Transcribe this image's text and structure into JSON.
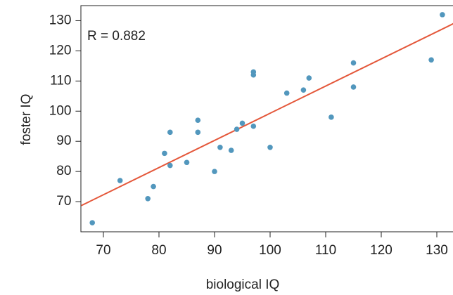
{
  "chart_data": {
    "type": "scatter",
    "x_label": "biological IQ",
    "y_label": "foster IQ",
    "annotation": "R =  0.882",
    "x": [
      82,
      90,
      91,
      115,
      115,
      129,
      131,
      78,
      79,
      82,
      97,
      100,
      107,
      68,
      73,
      81,
      85,
      87,
      87,
      93,
      94,
      95,
      97,
      97,
      103,
      106,
      111
    ],
    "y": [
      82,
      80,
      88,
      108,
      116,
      117,
      132,
      71,
      75,
      93,
      95,
      88,
      111,
      63,
      77,
      86,
      83,
      93,
      97,
      87,
      94,
      96,
      112,
      113,
      106,
      107,
      98
    ],
    "color": "#5297bd",
    "fit": {
      "intercept": 9.21,
      "slope": 0.901,
      "color": "#e4573a"
    },
    "xlim": [
      66,
      135
    ],
    "ylim": [
      60,
      135
    ],
    "xticks": [
      70,
      80,
      90,
      100,
      110,
      120,
      130
    ],
    "yticks": [
      70,
      80,
      90,
      100,
      110,
      120,
      130
    ]
  }
}
